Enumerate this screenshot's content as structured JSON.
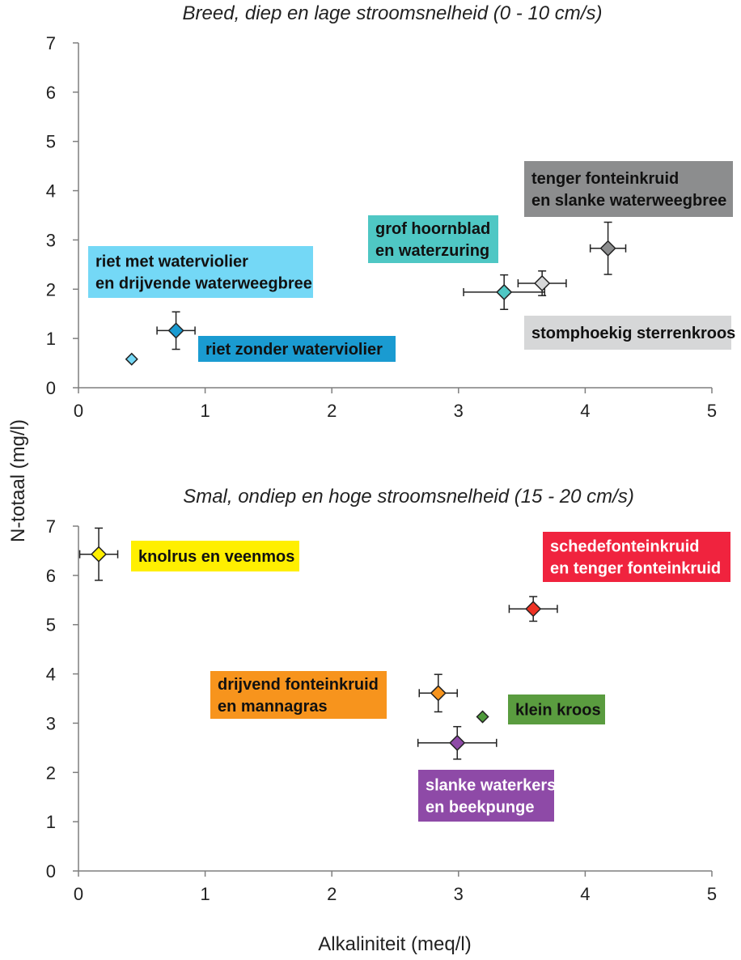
{
  "chart_data": [
    {
      "type": "scatter",
      "title": "Breed, diep en lage stroomsnelheid (0 - 10 cm/s)",
      "xlabel": "Alkaliniteit (meq/l)",
      "ylabel": "N-totaal (mg/l)",
      "xlim": [
        0,
        5
      ],
      "ylim": [
        0,
        7
      ],
      "xticks": [
        "0",
        "1",
        "2",
        "3",
        "4",
        "5"
      ],
      "yticks": [
        "0",
        "1",
        "2",
        "3",
        "4",
        "5",
        "6",
        "7"
      ],
      "grid": false,
      "points": [
        {
          "x": 0.42,
          "y": 0.58,
          "color": "#74d8f6"
        },
        {
          "x": 0.77,
          "y": 1.16,
          "x_err": 0.15,
          "y_err": 0.38,
          "color": "#1a9bd1"
        },
        {
          "x": 3.36,
          "y": 1.94,
          "x_err": 0.32,
          "y_err": 0.35,
          "color": "#4fc7c4"
        },
        {
          "x": 3.66,
          "y": 2.12,
          "x_err": 0.19,
          "y_err": 0.25,
          "color": "#d6d7d8"
        },
        {
          "x": 4.18,
          "y": 2.83,
          "x_err": 0.14,
          "y_err": 0.53,
          "color": "#8c8d8e"
        }
      ],
      "annotations": [
        {
          "lines": [
            "riet met waterviolier",
            "en drijvende waterweegbree"
          ],
          "bg": "#74d8f6",
          "fg": "#111111"
        },
        {
          "lines": [
            "riet zonder waterviolier"
          ],
          "bg": "#1a9bd1",
          "fg": "#111111"
        },
        {
          "lines": [
            "grof hoornblad",
            "en waterzuring"
          ],
          "bg": "#4fc7c4",
          "fg": "#111111"
        },
        {
          "lines": [
            "tenger fonteinkruid",
            "en slanke waterweegbree"
          ],
          "bg": "#8c8d8e",
          "fg": "#111111"
        },
        {
          "lines": [
            "stomphoekig sterrenkroos"
          ],
          "bg": "#d6d7d8",
          "fg": "#111111"
        }
      ]
    },
    {
      "type": "scatter",
      "title": "Smal, ondiep en hoge stroomsnelheid (15 - 20 cm/s)",
      "xlabel": "Alkaliniteit (meq/l)",
      "ylabel": "N-totaal (mg/l)",
      "xlim": [
        0,
        5
      ],
      "ylim": [
        0,
        7
      ],
      "xticks": [
        "0",
        "1",
        "2",
        "3",
        "4",
        "5"
      ],
      "yticks": [
        "0",
        "1",
        "2",
        "3",
        "4",
        "5",
        "6",
        "7"
      ],
      "grid": false,
      "points": [
        {
          "x": 0.16,
          "y": 6.43,
          "x_err": 0.15,
          "y_err": 0.53,
          "color": "#ffef00"
        },
        {
          "x": 3.59,
          "y": 5.32,
          "x_err": 0.19,
          "y_err": 0.25,
          "color": "#ee3224"
        },
        {
          "x": 2.84,
          "y": 3.61,
          "x_err": 0.15,
          "y_err": 0.38,
          "color": "#f7941d"
        },
        {
          "x": 3.19,
          "y": 3.13,
          "color": "#4e9a3a"
        },
        {
          "x": 2.99,
          "y": 2.6,
          "x_err": 0.31,
          "y_err": 0.33,
          "color": "#8e4aa7"
        }
      ],
      "annotations": [
        {
          "lines": [
            "knolrus en veenmos"
          ],
          "bg": "#ffef00",
          "fg": "#111111"
        },
        {
          "lines": [
            "schedefonteinkruid",
            "en tenger fonteinkruid"
          ],
          "bg": "#f0233e",
          "fg": "#ffffff"
        },
        {
          "lines": [
            "drijvend fonteinkruid",
            "en mannagras"
          ],
          "bg": "#f7941d",
          "fg": "#111111"
        },
        {
          "lines": [
            "klein kroos"
          ],
          "bg": "#5a9c3f",
          "fg": "#111111"
        },
        {
          "lines": [
            "slanke waterkers",
            "en beekpunge"
          ],
          "bg": "#8e4aa7",
          "fg": "#ffffff"
        }
      ]
    }
  ],
  "shared_axis": {
    "ylabel": "N-totaal (mg/l)",
    "xlabel": "Alkaliniteit (meq/l)"
  }
}
